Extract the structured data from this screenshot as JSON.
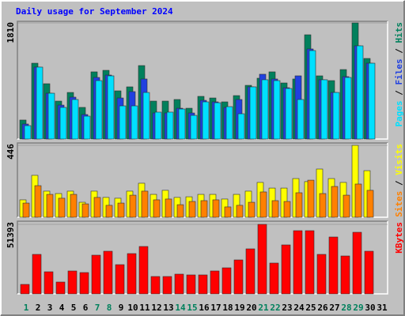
{
  "chart_data": [
    {
      "type": "bar",
      "title": "Daily usage for September 2024",
      "ylim": [
        0,
        1810
      ],
      "yticks": [
        1810
      ],
      "series": [
        {
          "name": "Hits",
          "color": "#00805c",
          "values": [
            296,
            1182,
            862,
            591,
            726,
            493,
            1047,
            1071,
            751,
            813,
            1145,
            591,
            591,
            616,
            480,
            665,
            640,
            579,
            677,
            837,
            948,
            1047,
            874,
            936,
            1625,
            985,
            911,
            1083,
            1810,
            1256,
            0
          ]
        },
        {
          "name": "Files",
          "color": "#2040e0",
          "values": [
            234,
            1121,
            714,
            529,
            653,
            382,
            960,
            997,
            640,
            739,
            936,
            406,
            406,
            480,
            406,
            603,
            579,
            493,
            616,
            813,
            1010,
            936,
            800,
            985,
            1404,
            924,
            726,
            973,
            1453,
            1182,
            0
          ]
        },
        {
          "name": "Pages",
          "color": "#00e0ff",
          "values": [
            209,
            1121,
            714,
            493,
            616,
            357,
            911,
            985,
            517,
            517,
            726,
            419,
            419,
            468,
            369,
            579,
            566,
            505,
            394,
            813,
            924,
            911,
            788,
            616,
            1379,
            924,
            726,
            960,
            1453,
            1182,
            0
          ]
        }
      ]
    },
    {
      "type": "bar",
      "ylim": [
        0,
        446
      ],
      "yticks": [
        446
      ],
      "series": [
        {
          "name": "Visits",
          "color": "#ffff00",
          "values": [
            108,
            260,
            162,
            147,
            162,
            93,
            162,
            123,
            118,
            162,
            211,
            142,
            167,
            123,
            127,
            142,
            142,
            113,
            142,
            162,
            216,
            181,
            181,
            240,
            221,
            299,
            240,
            216,
            446,
            289,
            0
          ]
        },
        {
          "name": "Sites",
          "color": "#ff8000",
          "values": [
            88,
            196,
            142,
            118,
            142,
            83,
            123,
            74,
            88,
            137,
            162,
            108,
            113,
            78,
            98,
            103,
            108,
            64,
            74,
            93,
            157,
            103,
            98,
            152,
            230,
            147,
            191,
            137,
            206,
            167,
            0
          ]
        }
      ]
    },
    {
      "type": "bar",
      "ylim": [
        0,
        51393
      ],
      "yticks": [
        51393
      ],
      "categories": [
        "1",
        "2",
        "3",
        "4",
        "5",
        "6",
        "7",
        "8",
        "9",
        "10",
        "11",
        "12",
        "13",
        "14",
        "15",
        "16",
        "17",
        "18",
        "19",
        "20",
        "21",
        "22",
        "23",
        "24",
        "25",
        "26",
        "27",
        "28",
        "29",
        "30",
        "31"
      ],
      "highlighted_categories": [
        "1",
        "7",
        "8",
        "14",
        "15",
        "21",
        "22",
        "28",
        "29"
      ],
      "highlight_color": "#00805c",
      "series": [
        {
          "name": "KBytes",
          "color": "#ff0000",
          "values": [
            7008,
            29200,
            16350,
            8760,
            16940,
            15770,
            28620,
            31540,
            21610,
            29790,
            35040,
            12850,
            12850,
            14600,
            14020,
            14020,
            16940,
            19270,
            25110,
            33290,
            51393,
            22780,
            36210,
            46720,
            46720,
            29200,
            42050,
            28030,
            45550,
            31540,
            0
          ]
        }
      ]
    }
  ]
}
